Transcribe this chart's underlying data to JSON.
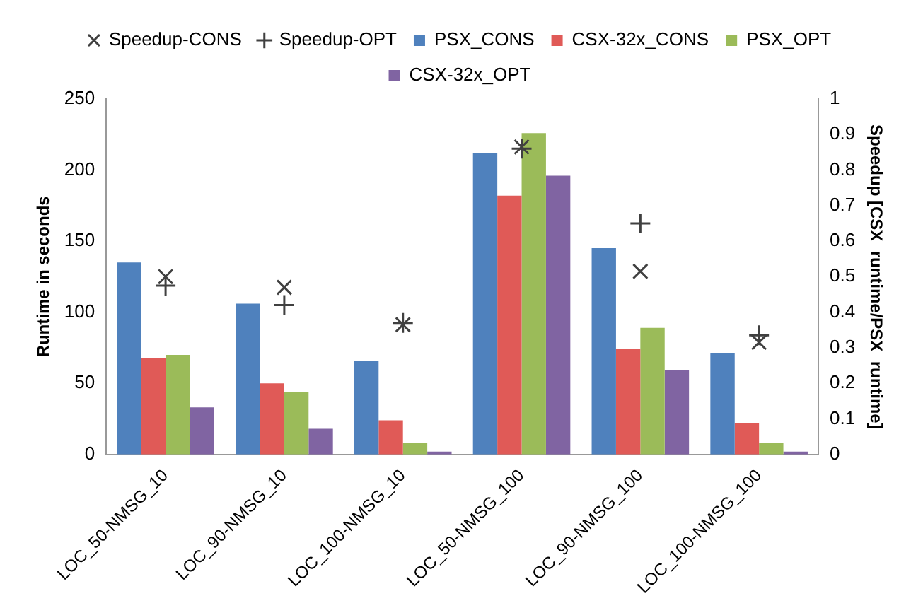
{
  "chart_data": {
    "type": "bar",
    "categories": [
      "LOC_50-NMSG_10",
      "LOC_90-NMSG_10",
      "LOC_100-NMSG_10",
      "LOC_50-NMSG_100",
      "LOC_90-NMSG_100",
      "LOC_100-NMSG_100"
    ],
    "series": [
      {
        "name": "PSX_CONS",
        "color": "#4f81bd",
        "values": [
          135,
          106,
          66,
          212,
          145,
          71
        ]
      },
      {
        "name": "CSX-32x_CONS",
        "color": "#e05a57",
        "values": [
          68,
          50,
          24,
          182,
          74,
          22
        ]
      },
      {
        "name": "PSX_OPT",
        "color": "#9bbb59",
        "values": [
          70,
          44,
          8,
          226,
          89,
          8
        ]
      },
      {
        "name": "CSX-32x_OPT",
        "color": "#8064a2",
        "values": [
          33,
          18,
          2,
          196,
          59,
          2
        ]
      },
      {
        "name": "Speedup-CONS",
        "type": "scatter",
        "axis": "y2",
        "marker": "cross",
        "color": "#404040",
        "values": [
          0.5,
          0.47,
          0.365,
          0.865,
          0.515,
          0.315
        ]
      },
      {
        "name": "Speedup-OPT",
        "type": "scatter",
        "axis": "y2",
        "marker": "plus",
        "color": "#404040",
        "values": [
          0.475,
          0.42,
          0.37,
          0.86,
          0.65,
          0.335
        ]
      }
    ],
    "ylabel": "Runtime in seconds",
    "y2label": "Speedup [CSX_runtime/PSX_runtime]",
    "ylim": [
      0,
      250
    ],
    "yticks": [
      0,
      50,
      100,
      150,
      200,
      250
    ],
    "y2lim": [
      0,
      1
    ],
    "y2ticks": [
      0,
      0.1,
      0.2,
      0.3,
      0.4,
      0.5,
      0.6,
      0.7,
      0.8,
      0.9,
      1
    ],
    "grid": false,
    "legend": "top"
  }
}
